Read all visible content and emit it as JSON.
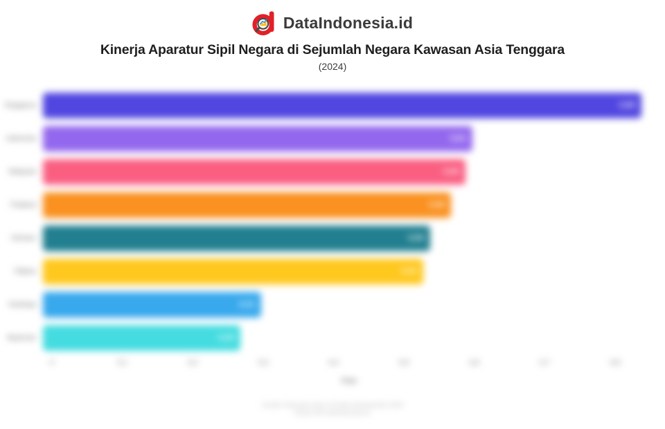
{
  "header": {
    "brand": "DataIndonesia.id",
    "title": "Kinerja Aparatur Sipil Negara di Sejumlah Negara Kawasan Asia Tenggara",
    "subtitle": "(2024)"
  },
  "chart_data": {
    "type": "bar",
    "orientation": "horizontal",
    "title": "Kinerja Aparatur Sipil Negara di Sejumlah Negara Kawasan Asia Tenggara",
    "subtitle": "(2024)",
    "categories": [
      "Singapura",
      "Indonesia",
      "Malaysia",
      "Thailand",
      "Vietnam",
      "Filipina",
      "Kamboja",
      "Myanmar"
    ],
    "values": [
      0.85,
      0.61,
      0.6,
      0.58,
      0.55,
      0.54,
      0.31,
      0.28
    ],
    "value_labels": [
      "0,85",
      "0,61",
      "0,60",
      "0,58",
      "0,55",
      "0,54",
      "0,31",
      "0,28"
    ],
    "bar_colors": [
      "#5146e0",
      "#9468ee",
      "#fa5f82",
      "#fa9120",
      "#217f8f",
      "#ffc81f",
      "#38a9ed",
      "#44dce0"
    ],
    "xlabel": "Poin",
    "xticks": [
      "0",
      "0,1",
      "0,2",
      "0,3",
      "0,4",
      "0,5",
      "0,6",
      "0,7",
      "0,8"
    ],
    "xtick_values": [
      0,
      0.1,
      0.2,
      0.3,
      0.4,
      0.5,
      0.6,
      0.7,
      0.8
    ],
    "xlim": [
      0,
      0.85
    ],
    "grid": false,
    "legend": false
  },
  "footer": {
    "line1": "Sumber: Blavatnik Index of Public Administration 2024",
    "line2": "Diolah oleh DataIndonesia.id"
  },
  "colors": {
    "brand_red": "#e02128",
    "title_text": "#1f1f1f",
    "axis_text": "#6e6e6e"
  }
}
